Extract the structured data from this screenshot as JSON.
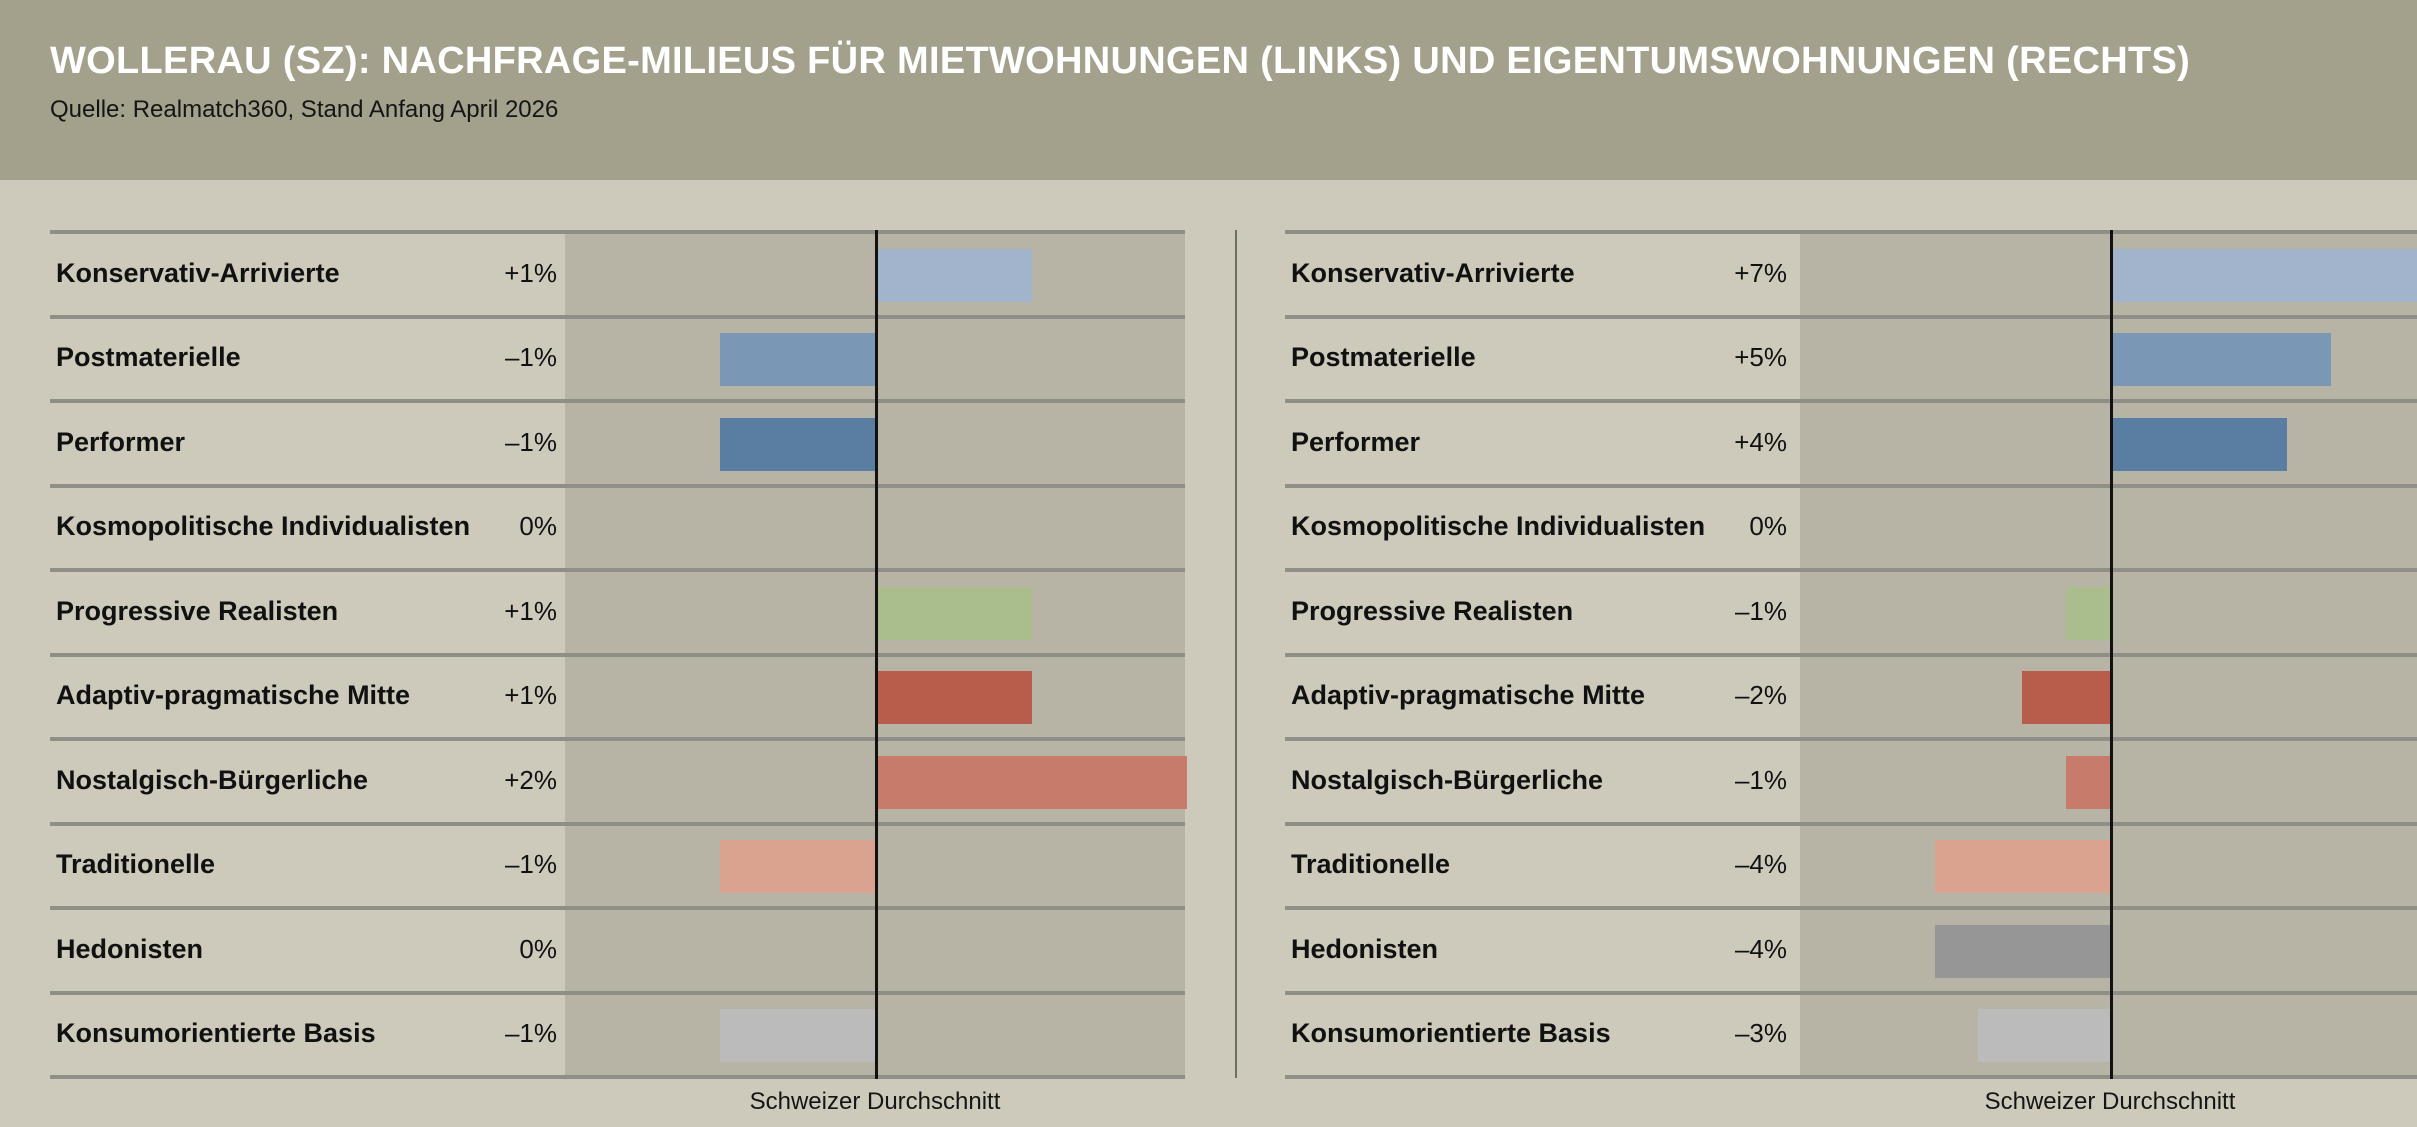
{
  "header": {
    "title": "WOLLERAU (SZ): NACHFRAGE-MILIEUS FÜR MIETWOHNUNGEN (LINKS) UND EIGENTUMSWOHNUNGEN (RECHTS)",
    "source": "Quelle: Realmatch360, Stand Anfang April 2026"
  },
  "colors": {
    "background": "#cdcabb",
    "header": "#a3a08c",
    "plot_area": "#b7b4a5",
    "categories": [
      "#a1b4cb",
      "#7a97b5",
      "#5a7ea2",
      "#b0b8a8",
      "#aabd8c",
      "#b85d4c",
      "#c77b6a",
      "#d9a38f",
      "#969696",
      "#bbbbbb"
    ]
  },
  "chart_data": [
    {
      "type": "bar",
      "orientation": "horizontal",
      "categories": [
        "Konservativ-Arrivierte",
        "Postmaterielle",
        "Performer",
        "Kosmopolitische Individualisten",
        "Progressive Realisten",
        "Adaptiv-pragmatische Mitte",
        "Nostalgisch-Bürgerliche",
        "Traditionelle",
        "Hedonisten",
        "Konsumorientierte Basis"
      ],
      "values": [
        1,
        -1,
        -1,
        0,
        1,
        1,
        2,
        -1,
        0,
        -1
      ],
      "value_labels": [
        "+1%",
        "–1%",
        "–1%",
        "0%",
        "+1%",
        "+1%",
        "+2%",
        "–1%",
        "0%",
        "–1%"
      ],
      "xlim": [
        -2,
        2
      ],
      "reference_label": "Schweizer Durchschnitt",
      "grid": false
    },
    {
      "type": "bar",
      "orientation": "horizontal",
      "categories": [
        "Konservativ-Arrivierte",
        "Postmaterielle",
        "Performer",
        "Kosmopolitische Individualisten",
        "Progressive Realisten",
        "Adaptiv-pragmatische Mitte",
        "Nostalgisch-Bürgerliche",
        "Traditionelle",
        "Hedonisten",
        "Konsumorientierte Basis"
      ],
      "values": [
        7,
        5,
        4,
        0,
        -1,
        -2,
        -1,
        -4,
        -4,
        -3
      ],
      "value_labels": [
        "+7%",
        "+5%",
        "+4%",
        "0%",
        "–1%",
        "–2%",
        "–1%",
        "–4%",
        "–4%",
        "–3%"
      ],
      "xlim": [
        -7,
        7
      ],
      "reference_label": "Schweizer Durchschnitt",
      "grid": false
    }
  ]
}
